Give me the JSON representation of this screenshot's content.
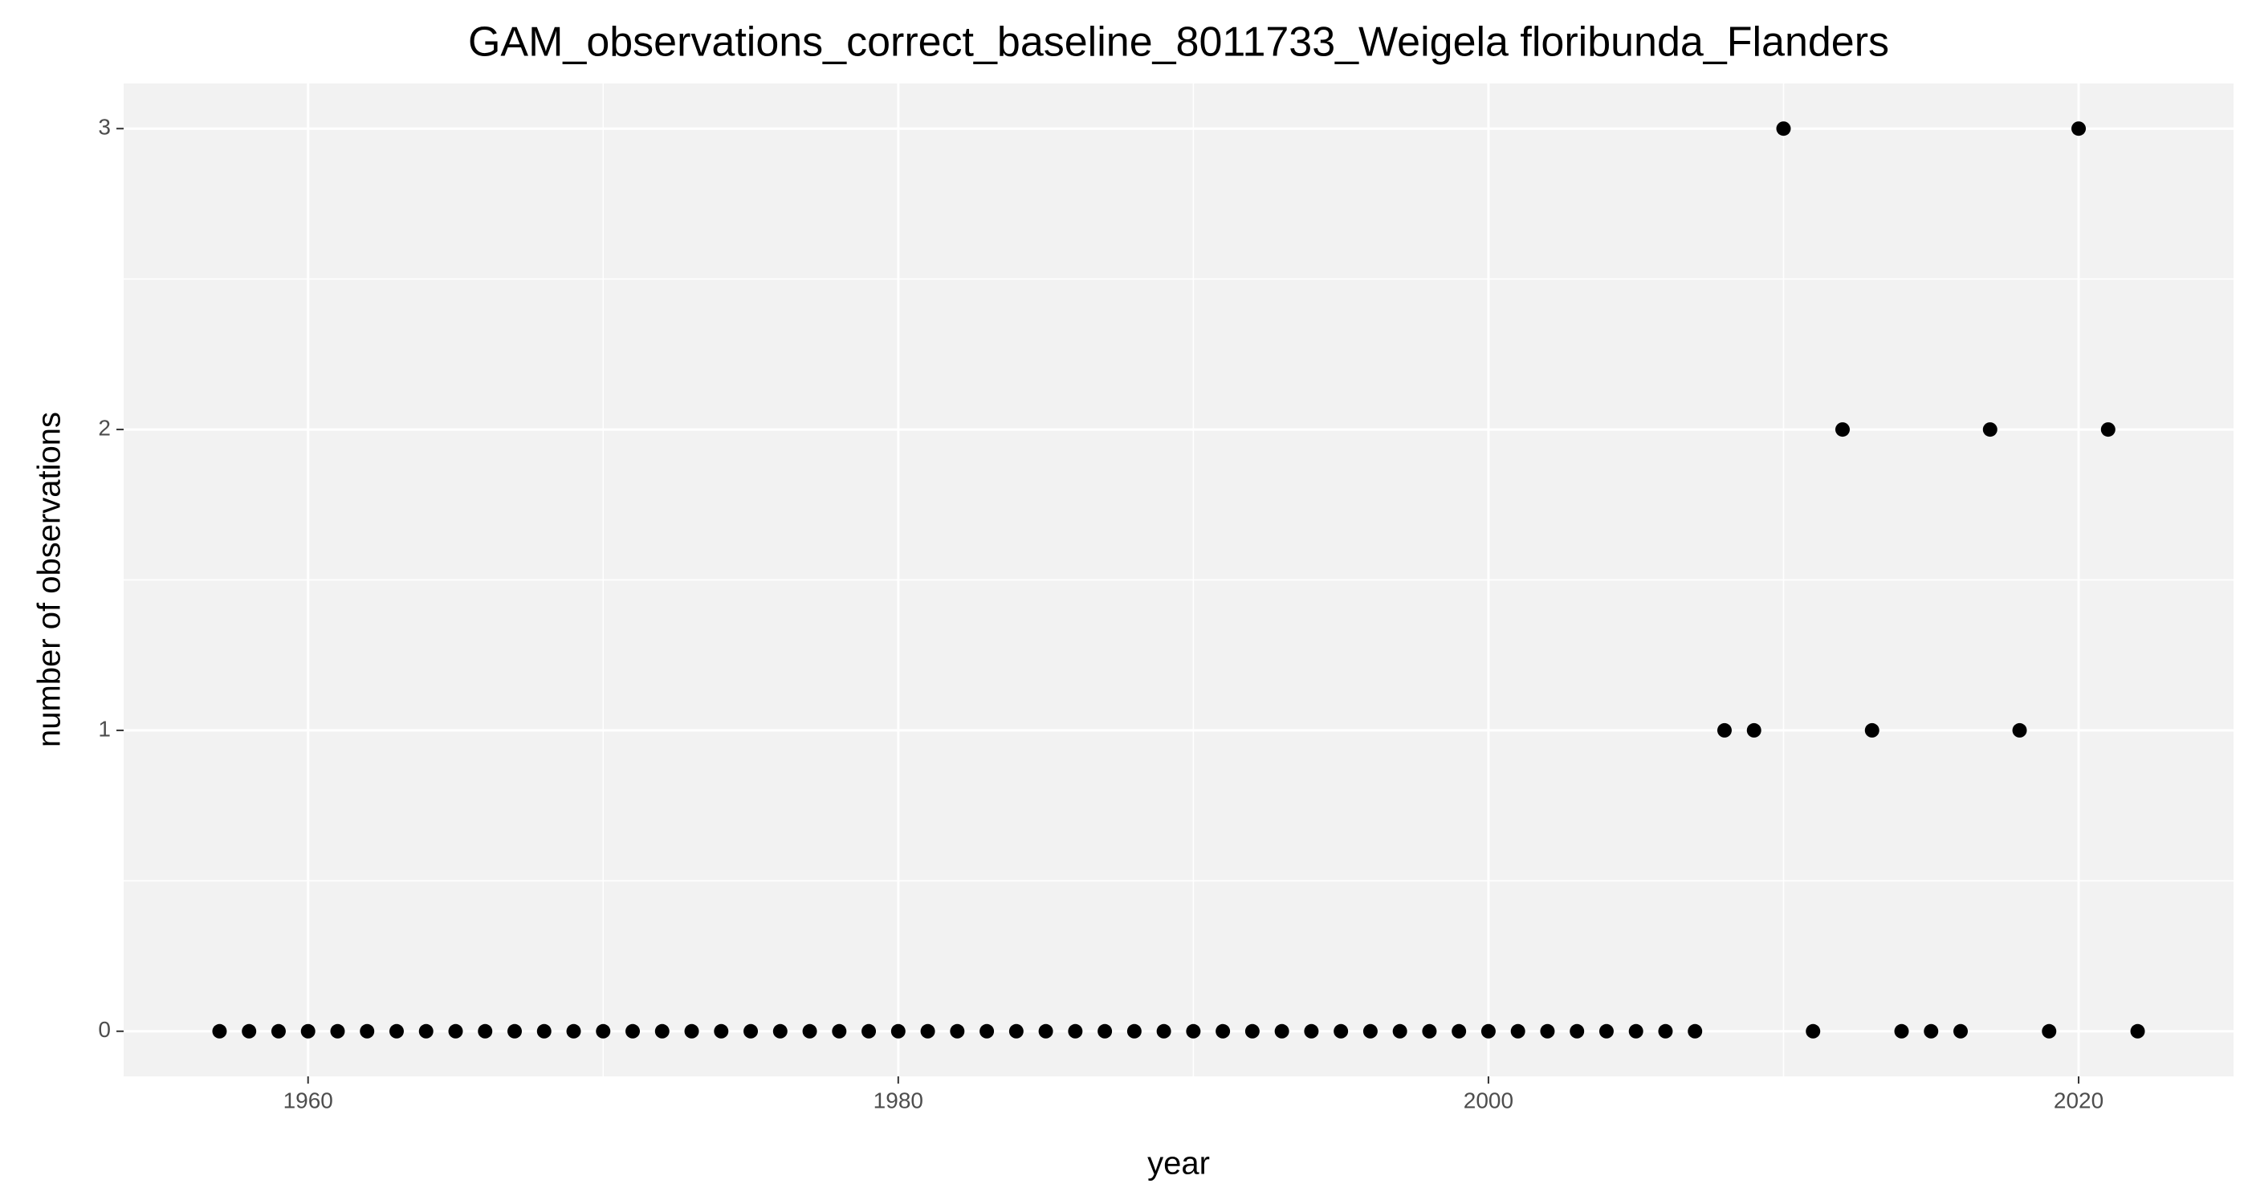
{
  "chart_data": {
    "type": "scatter",
    "title": "GAM_observations_correct_baseline_8011733_Weigela floribunda_Flanders",
    "x_label": "year",
    "y_label": "number of observations",
    "x": [
      1957,
      1958,
      1959,
      1960,
      1961,
      1962,
      1963,
      1964,
      1965,
      1966,
      1967,
      1968,
      1969,
      1970,
      1971,
      1972,
      1973,
      1974,
      1975,
      1976,
      1977,
      1978,
      1979,
      1980,
      1981,
      1982,
      1983,
      1984,
      1985,
      1986,
      1987,
      1988,
      1989,
      1990,
      1991,
      1992,
      1993,
      1994,
      1995,
      1996,
      1997,
      1998,
      1999,
      2000,
      2001,
      2002,
      2003,
      2004,
      2005,
      2006,
      2007,
      2008,
      2009,
      2010,
      2011,
      2012,
      2013,
      2014,
      2015,
      2016,
      2017,
      2018,
      2019,
      2020,
      2021,
      2022
    ],
    "values": [
      0,
      0,
      0,
      0,
      0,
      0,
      0,
      0,
      0,
      0,
      0,
      0,
      0,
      0,
      0,
      0,
      0,
      0,
      0,
      0,
      0,
      0,
      0,
      0,
      0,
      0,
      0,
      0,
      0,
      0,
      0,
      0,
      0,
      0,
      0,
      0,
      0,
      0,
      0,
      0,
      0,
      0,
      0,
      0,
      0,
      0,
      0,
      0,
      0,
      0,
      0,
      1,
      1,
      3,
      0,
      2,
      1,
      0,
      0,
      0,
      2,
      1,
      0,
      3,
      2,
      0
    ],
    "color": "#000000",
    "xlim": [
      1953.75,
      2025.25
    ],
    "xticks": [
      1960,
      1980,
      2000,
      2020
    ],
    "ylim": [
      -0.15,
      3.15
    ],
    "yticks": [
      0,
      1,
      2,
      3
    ],
    "grid": true
  }
}
